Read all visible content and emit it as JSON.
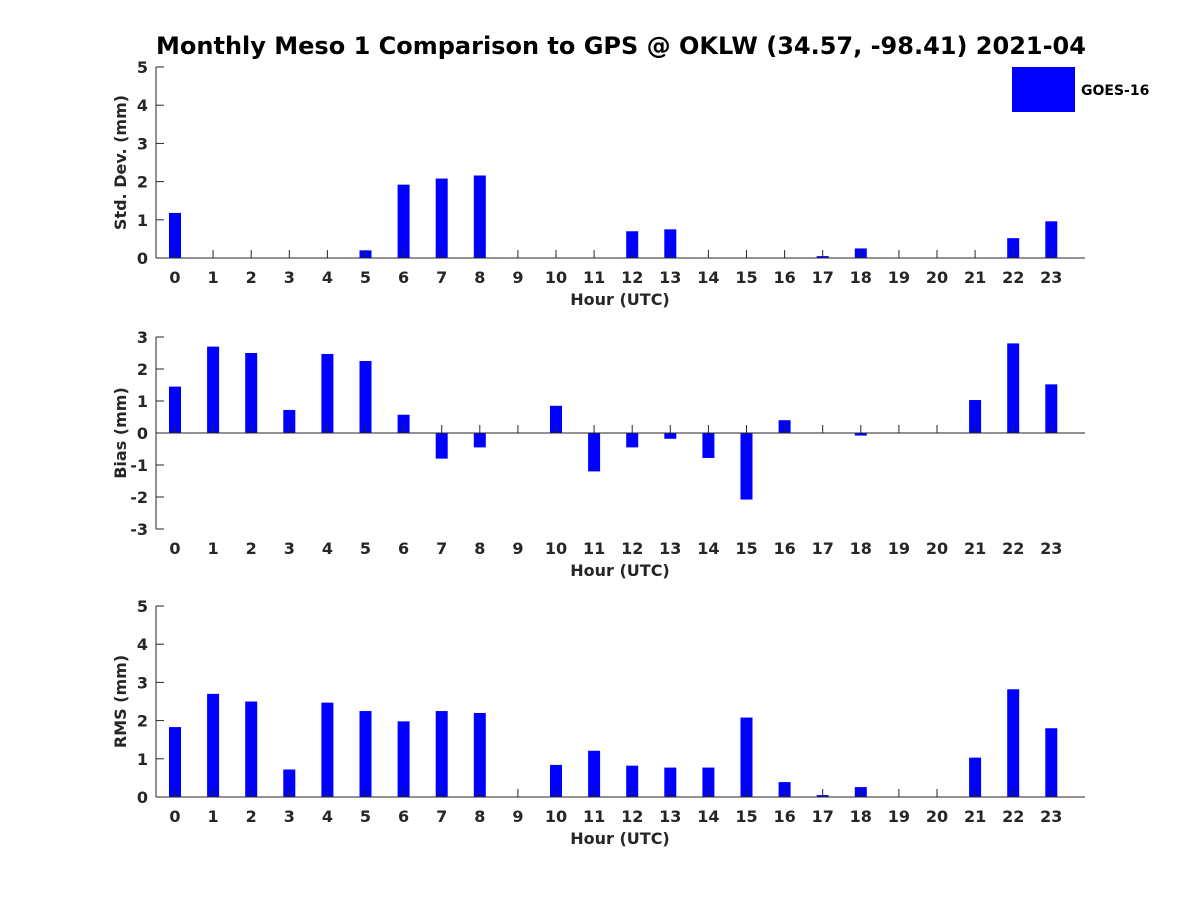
{
  "title": "Monthly Meso 1 Comparison to GPS @ OKLW (34.57, -98.41) 2021-04",
  "legend": {
    "label": "GOES-16",
    "color": "#0000ff"
  },
  "colors": {
    "bar": "#0000ff",
    "axis": "#262626"
  },
  "chart_data": [
    {
      "type": "bar",
      "title": "Monthly Meso 1 Comparison to GPS @ OKLW (34.57, -98.41) 2021-04",
      "xlabel": "Hour (UTC)",
      "ylabel": "Std. Dev. (mm)",
      "ylim": [
        0,
        5
      ],
      "yticks": [
        "0",
        "1",
        "2",
        "3",
        "4",
        "5"
      ],
      "categories": [
        "0",
        "1",
        "2",
        "3",
        "4",
        "5",
        "6",
        "7",
        "8",
        "9",
        "10",
        "11",
        "12",
        "13",
        "14",
        "15",
        "16",
        "17",
        "18",
        "19",
        "20",
        "21",
        "22",
        "23"
      ],
      "series": [
        {
          "name": "GOES-16",
          "values": [
            1.18,
            0,
            0,
            0,
            0,
            0.2,
            1.92,
            2.08,
            2.16,
            0,
            0,
            0,
            0.7,
            0.75,
            0,
            0,
            0,
            0.05,
            0.25,
            0,
            0,
            0,
            0.52,
            0.96
          ]
        }
      ]
    },
    {
      "type": "bar",
      "xlabel": "Hour (UTC)",
      "ylabel": "Bias (mm)",
      "ylim": [
        -3,
        3
      ],
      "yticks": [
        "-3",
        "-2",
        "-1",
        "0",
        "1",
        "2",
        "3"
      ],
      "categories": [
        "0",
        "1",
        "2",
        "3",
        "4",
        "5",
        "6",
        "7",
        "8",
        "9",
        "10",
        "11",
        "12",
        "13",
        "14",
        "15",
        "16",
        "17",
        "18",
        "19",
        "20",
        "21",
        "22",
        "23"
      ],
      "series": [
        {
          "name": "GOES-16",
          "values": [
            1.45,
            2.7,
            2.5,
            0.72,
            2.47,
            2.25,
            0.57,
            -0.8,
            -0.45,
            0,
            0.85,
            -1.2,
            -0.45,
            -0.18,
            -0.78,
            -2.08,
            0.4,
            0,
            -0.08,
            0,
            0,
            1.03,
            2.8,
            1.52
          ]
        }
      ]
    },
    {
      "type": "bar",
      "xlabel": "Hour (UTC)",
      "ylabel": "RMS (mm)",
      "ylim": [
        0,
        5
      ],
      "yticks": [
        "0",
        "1",
        "2",
        "3",
        "4",
        "5"
      ],
      "categories": [
        "0",
        "1",
        "2",
        "3",
        "4",
        "5",
        "6",
        "7",
        "8",
        "9",
        "10",
        "11",
        "12",
        "13",
        "14",
        "15",
        "16",
        "17",
        "18",
        "19",
        "20",
        "21",
        "22",
        "23"
      ],
      "series": [
        {
          "name": "GOES-16",
          "values": [
            1.83,
            2.7,
            2.5,
            0.72,
            2.47,
            2.25,
            1.98,
            2.25,
            2.2,
            0,
            0.84,
            1.21,
            0.82,
            0.77,
            0.77,
            2.08,
            0.39,
            0.05,
            0.26,
            0,
            0,
            1.03,
            2.82,
            1.8
          ]
        }
      ]
    }
  ]
}
